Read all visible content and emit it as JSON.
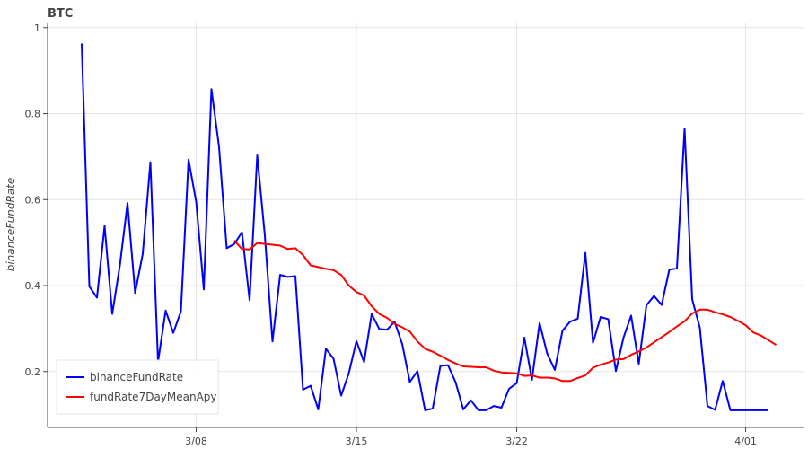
{
  "chart_data": {
    "type": "line",
    "title": "BTC",
    "xlabel": "",
    "ylabel": "binanceFundRate",
    "x_ticks": [
      "3/08",
      "3/15",
      "3/22",
      "4/01"
    ],
    "ylim": [
      0.07,
      1.01
    ],
    "y_ticks": [
      "0.2",
      "0.4",
      "0.6",
      "0.8",
      "1"
    ],
    "grid": true,
    "legend_position": "bottom-left",
    "x_start": "2021-03-03",
    "x_step_days": 0.3333,
    "series": [
      {
        "name": "binanceFundRate",
        "color": "#0000ff",
        "values": [
          0.963,
          0.398,
          0.372,
          0.539,
          0.334,
          0.447,
          0.592,
          0.383,
          0.474,
          0.687,
          0.223,
          0.342,
          0.29,
          0.34,
          0.693,
          0.595,
          0.391,
          0.857,
          0.722,
          0.487,
          0.497,
          0.524,
          0.366,
          0.703,
          0.516,
          0.27,
          0.425,
          0.42,
          0.422,
          0.158,
          0.167,
          0.112,
          0.253,
          0.23,
          0.144,
          0.196,
          0.271,
          0.222,
          0.334,
          0.299,
          0.297,
          0.316,
          0.264,
          0.176,
          0.201,
          0.11,
          0.114,
          0.213,
          0.215,
          0.175,
          0.112,
          0.133,
          0.11,
          0.11,
          0.12,
          0.116,
          0.16,
          0.173,
          0.279,
          0.181,
          0.313,
          0.242,
          0.204,
          0.295,
          0.316,
          0.323,
          0.476,
          0.267,
          0.327,
          0.322,
          0.201,
          0.279,
          0.33,
          0.218,
          0.354,
          0.376,
          0.355,
          0.437,
          0.44,
          0.765,
          0.368,
          0.302,
          0.12,
          0.111,
          0.178,
          0.11,
          0.11,
          0.11,
          0.11,
          0.11,
          0.11
        ]
      },
      {
        "name": "fundRate7DayMeanApy",
        "color": "#ff0000",
        "values": [
          null,
          null,
          null,
          null,
          null,
          null,
          null,
          null,
          null,
          null,
          null,
          null,
          null,
          null,
          null,
          null,
          null,
          null,
          null,
          null,
          0.505,
          0.485,
          0.484,
          0.499,
          0.497,
          0.495,
          0.493,
          0.485,
          0.487,
          0.471,
          0.447,
          0.443,
          0.439,
          0.436,
          0.425,
          0.4,
          0.385,
          0.377,
          0.352,
          0.334,
          0.325,
          0.311,
          0.303,
          0.293,
          0.27,
          0.253,
          0.246,
          0.237,
          0.227,
          0.219,
          0.212,
          0.211,
          0.21,
          0.21,
          0.202,
          0.198,
          0.197,
          0.196,
          0.19,
          0.191,
          0.186,
          0.186,
          0.184,
          0.178,
          0.178,
          0.185,
          0.191,
          0.209,
          0.216,
          0.221,
          0.228,
          0.229,
          0.239,
          0.247,
          0.256,
          0.268,
          0.28,
          0.292,
          0.305,
          0.317,
          0.335,
          0.344,
          0.344,
          0.338,
          0.333,
          0.327,
          0.318,
          0.308,
          0.291,
          0.284,
          0.273,
          0.262
        ]
      }
    ]
  }
}
